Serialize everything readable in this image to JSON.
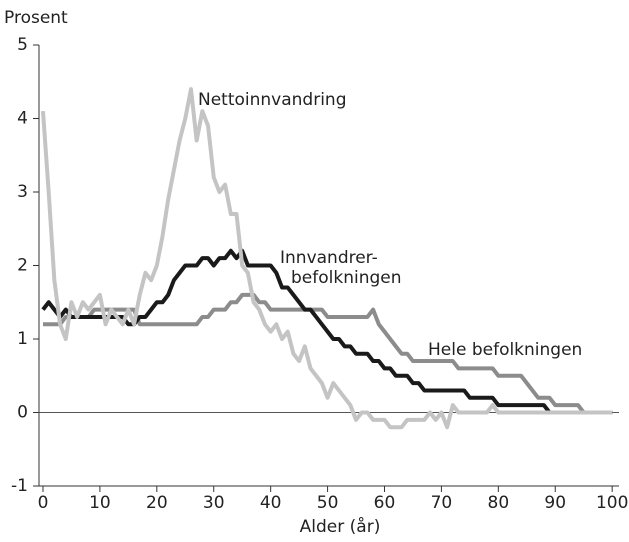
{
  "chart_data": {
    "type": "line",
    "y_label": "Prosent",
    "x_label": "Alder (år)",
    "x": [
      0,
      1,
      2,
      3,
      4,
      5,
      6,
      7,
      8,
      9,
      10,
      11,
      12,
      13,
      14,
      15,
      16,
      17,
      18,
      19,
      20,
      21,
      22,
      23,
      24,
      25,
      26,
      27,
      28,
      29,
      30,
      31,
      32,
      33,
      34,
      35,
      36,
      37,
      38,
      39,
      40,
      41,
      42,
      43,
      44,
      45,
      46,
      47,
      48,
      49,
      50,
      51,
      52,
      53,
      54,
      55,
      56,
      57,
      58,
      59,
      60,
      61,
      62,
      63,
      64,
      65,
      66,
      67,
      68,
      69,
      70,
      71,
      72,
      73,
      74,
      75,
      76,
      77,
      78,
      79,
      80,
      81,
      82,
      83,
      84,
      85,
      86,
      87,
      88,
      89,
      90,
      91,
      92,
      93,
      94,
      95,
      96,
      97,
      98,
      99,
      100
    ],
    "series": [
      {
        "name": "Hele befolkningen",
        "color": "#8c8c8c",
        "values": [
          1.2,
          1.2,
          1.2,
          1.2,
          1.3,
          1.3,
          1.3,
          1.3,
          1.3,
          1.4,
          1.4,
          1.4,
          1.4,
          1.4,
          1.4,
          1.4,
          1.4,
          1.2,
          1.2,
          1.2,
          1.2,
          1.2,
          1.2,
          1.2,
          1.2,
          1.2,
          1.2,
          1.2,
          1.3,
          1.3,
          1.4,
          1.4,
          1.4,
          1.5,
          1.5,
          1.6,
          1.6,
          1.6,
          1.5,
          1.5,
          1.4,
          1.4,
          1.4,
          1.4,
          1.4,
          1.4,
          1.4,
          1.4,
          1.4,
          1.4,
          1.3,
          1.3,
          1.3,
          1.3,
          1.3,
          1.3,
          1.3,
          1.3,
          1.4,
          1.2,
          1.1,
          1.0,
          0.9,
          0.8,
          0.8,
          0.7,
          0.7,
          0.7,
          0.7,
          0.7,
          0.7,
          0.7,
          0.7,
          0.6,
          0.6,
          0.6,
          0.6,
          0.6,
          0.6,
          0.6,
          0.5,
          0.5,
          0.5,
          0.5,
          0.5,
          0.4,
          0.3,
          0.2,
          0.2,
          0.2,
          0.1,
          0.1,
          0.1,
          0.1,
          0.1,
          0,
          0,
          0,
          0,
          0,
          0
        ]
      },
      {
        "name": [
          "Innvandrer-",
          "befolkningen"
        ],
        "color": "#1a1a1a",
        "values": [
          1.4,
          1.5,
          1.4,
          1.3,
          1.4,
          1.3,
          1.3,
          1.3,
          1.3,
          1.3,
          1.3,
          1.3,
          1.3,
          1.3,
          1.3,
          1.2,
          1.2,
          1.3,
          1.3,
          1.4,
          1.5,
          1.5,
          1.6,
          1.8,
          1.9,
          2.0,
          2.0,
          2.0,
          2.1,
          2.1,
          2.0,
          2.1,
          2.1,
          2.2,
          2.1,
          2.2,
          2.0,
          2.0,
          2.0,
          2.0,
          2.0,
          1.9,
          1.7,
          1.7,
          1.6,
          1.5,
          1.4,
          1.4,
          1.3,
          1.2,
          1.1,
          1.0,
          1.0,
          0.9,
          0.9,
          0.8,
          0.8,
          0.8,
          0.7,
          0.7,
          0.6,
          0.6,
          0.5,
          0.5,
          0.5,
          0.4,
          0.4,
          0.3,
          0.3,
          0.3,
          0.3,
          0.3,
          0.3,
          0.3,
          0.3,
          0.2,
          0.2,
          0.2,
          0.2,
          0.2,
          0.1,
          0.1,
          0.1,
          0.1,
          0.1,
          0.1,
          0.1,
          0.1,
          0.1,
          0,
          0,
          0,
          0,
          0,
          0,
          0,
          0,
          0,
          0,
          0,
          0
        ]
      },
      {
        "name": "Nettoinnvandring",
        "color": "#c4c4c4",
        "values": [
          4.1,
          3.0,
          1.8,
          1.2,
          1.0,
          1.5,
          1.3,
          1.5,
          1.4,
          1.5,
          1.6,
          1.2,
          1.4,
          1.3,
          1.2,
          1.4,
          1.2,
          1.6,
          1.9,
          1.8,
          2.0,
          2.4,
          2.9,
          3.3,
          3.7,
          4.0,
          4.4,
          3.7,
          4.1,
          3.9,
          3.2,
          3.0,
          3.1,
          2.7,
          2.7,
          2.0,
          1.9,
          1.5,
          1.4,
          1.2,
          1.1,
          1.2,
          1.0,
          1.1,
          0.8,
          0.7,
          0.9,
          0.6,
          0.5,
          0.4,
          0.2,
          0.4,
          0.3,
          0.2,
          0.1,
          -0.1,
          0,
          0,
          -0.1,
          -0.1,
          -0.1,
          -0.2,
          -0.2,
          -0.2,
          -0.1,
          -0.1,
          -0.1,
          -0.1,
          0,
          -0.1,
          0,
          -0.2,
          0.1,
          0,
          0,
          0,
          0,
          0,
          0,
          0.1,
          0,
          0,
          0,
          0,
          0,
          0,
          0,
          0,
          0,
          0,
          0,
          0,
          0,
          0,
          0,
          0,
          0,
          0,
          0,
          0,
          0
        ]
      }
    ],
    "xlim": [
      -0.7,
      101.2
    ],
    "ylim": [
      -1,
      5
    ],
    "xticks": [
      0,
      10,
      20,
      30,
      40,
      50,
      60,
      70,
      80,
      90,
      100
    ],
    "yticks": [
      -1,
      0,
      1,
      2,
      3,
      4,
      5
    ],
    "zero_line": true
  }
}
